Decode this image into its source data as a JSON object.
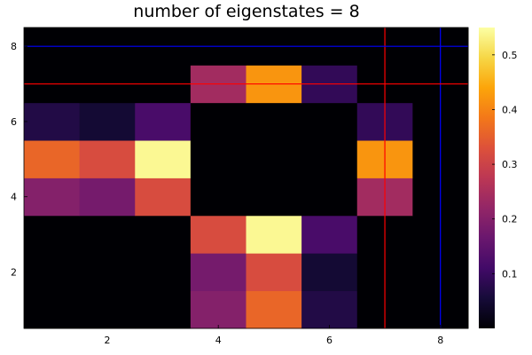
{
  "chart_data": {
    "type": "heatmap",
    "title": "number of eigenstates = 8",
    "xlabel": "",
    "ylabel": "",
    "x": [
      1,
      2,
      3,
      4,
      5,
      6,
      7,
      8
    ],
    "y": [
      1,
      2,
      3,
      4,
      5,
      6,
      7,
      8
    ],
    "xlim": [
      0.5,
      8.5
    ],
    "ylim": [
      0.5,
      8.5
    ],
    "xticks": [
      2,
      4,
      6,
      8
    ],
    "yticks": [
      2,
      4,
      6,
      8
    ],
    "grid": false,
    "colormap": "inferno",
    "clim": [
      0,
      0.55
    ],
    "colorbar_ticks": [
      0.1,
      0.2,
      0.3,
      0.4,
      0.5
    ],
    "values": [
      [
        0,
        0,
        0,
        0.2,
        0.36,
        0.07,
        0,
        0
      ],
      [
        0,
        0,
        0,
        0.18,
        0.32,
        0.05,
        0,
        0
      ],
      [
        0,
        0,
        0,
        0.32,
        0.54,
        0.12,
        0,
        0
      ],
      [
        0.2,
        0.18,
        0.32,
        0,
        0,
        0,
        0.24,
        0
      ],
      [
        0.36,
        0.32,
        0.54,
        0,
        0,
        0,
        0.42,
        0
      ],
      [
        0.07,
        0.05,
        0.12,
        0,
        0,
        0,
        0.09,
        0
      ],
      [
        0,
        0,
        0,
        0.24,
        0.42,
        0.09,
        0,
        0
      ],
      [
        0,
        0,
        0,
        0,
        0,
        0,
        0,
        0
      ]
    ],
    "vlines": [
      {
        "x": 7,
        "color": "#ff0000"
      },
      {
        "x": 8,
        "color": "#0000ff"
      }
    ],
    "hlines": [
      {
        "y": 7,
        "color": "#ff0000"
      },
      {
        "y": 8,
        "color": "#0000ff"
      }
    ]
  }
}
